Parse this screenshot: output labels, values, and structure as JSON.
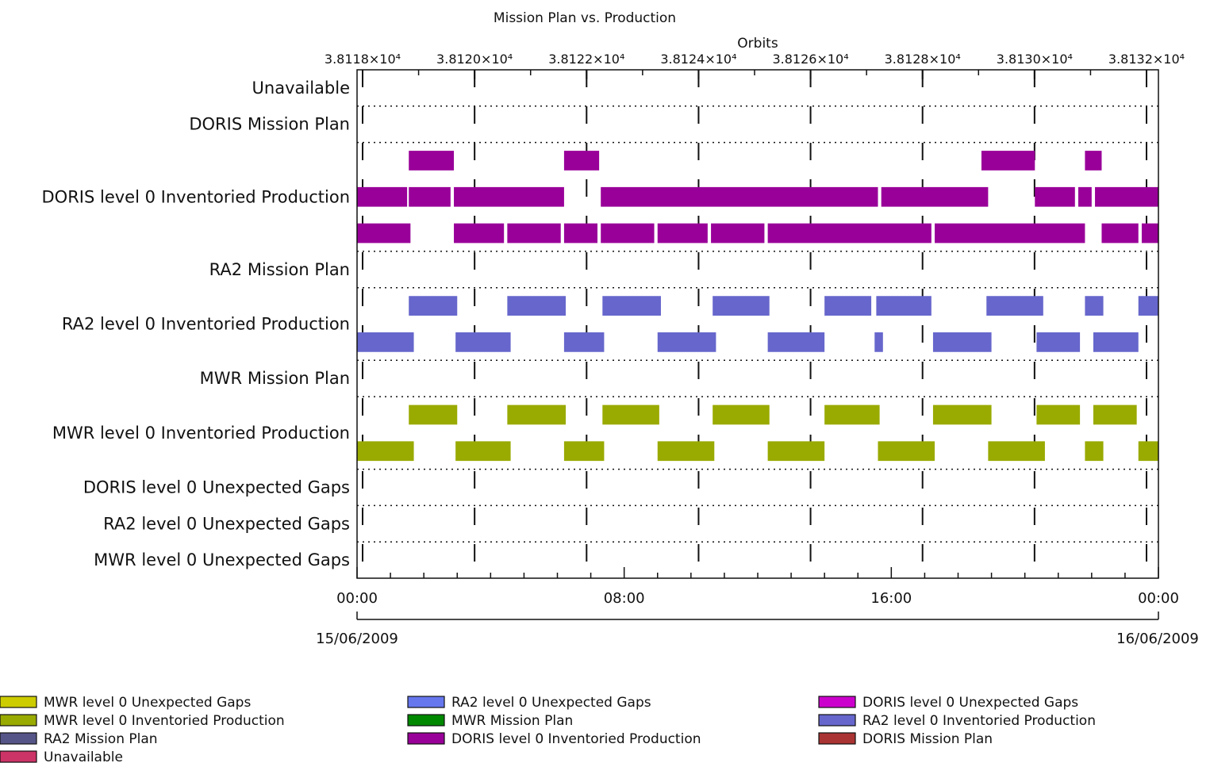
{
  "chart_data": {
    "type": "gantt",
    "title": "Mission Plan vs. Production",
    "top_axis": {
      "label": "Orbits",
      "ticks": [
        "3.8118×10⁴",
        "3.8120×10⁴",
        "3.8122×10⁴",
        "3.8124×10⁴",
        "3.8126×10⁴",
        "3.8128×10⁴",
        "3.8130×10⁴",
        "3.8132×10⁴"
      ]
    },
    "bottom_axis": {
      "range_hours": [
        0,
        24
      ],
      "ticks": [
        {
          "hour": 0,
          "label": "00:00"
        },
        {
          "hour": 8,
          "label": "08:00"
        },
        {
          "hour": 16,
          "label": "16:00"
        },
        {
          "hour": 24,
          "label": "00:00"
        }
      ],
      "start_date": "15/06/2009",
      "end_date": "16/06/2009"
    },
    "rows": [
      {
        "label": "Unavailable",
        "lanes": []
      },
      {
        "label": "DORIS Mission Plan",
        "lanes": []
      },
      {
        "label": "DORIS level 0 Inventoried Production",
        "color": "#990099",
        "lanes": [
          [
            [
              1.55,
              2.9
            ],
            [
              6.2,
              7.25
            ],
            [
              18.7,
              20.3
            ],
            [
              21.8,
              22.3
            ]
          ],
          [
            [
              0,
              1.5
            ],
            [
              1.55,
              2.8
            ],
            [
              2.9,
              6.2
            ],
            [
              7.3,
              15.6
            ],
            [
              15.7,
              18.9
            ],
            [
              20.3,
              21.5
            ],
            [
              21.6,
              22.0
            ],
            [
              22.1,
              24.0
            ]
          ],
          [
            [
              0,
              1.6
            ],
            [
              2.9,
              4.4
            ],
            [
              4.5,
              6.1
            ],
            [
              6.2,
              7.2
            ],
            [
              7.3,
              8.9
            ],
            [
              9.0,
              10.5
            ],
            [
              10.6,
              12.2
            ],
            [
              12.3,
              17.2
            ],
            [
              17.3,
              21.8
            ],
            [
              22.3,
              23.4
            ],
            [
              23.5,
              24.0
            ]
          ]
        ]
      },
      {
        "label": "RA2 Mission Plan",
        "lanes": []
      },
      {
        "label": "RA2 level 0 Inventoried Production",
        "color": "#6666cc",
        "lanes": [
          [
            [
              1.55,
              3.0
            ],
            [
              4.5,
              6.25
            ],
            [
              7.35,
              9.1
            ],
            [
              10.65,
              12.35
            ],
            [
              14.0,
              15.4
            ],
            [
              15.55,
              17.2
            ],
            [
              18.85,
              20.55
            ],
            [
              21.8,
              22.35
            ],
            [
              23.4,
              24.0
            ]
          ],
          [
            [
              0,
              1.7
            ],
            [
              2.95,
              4.6
            ],
            [
              6.2,
              7.4
            ],
            [
              9.0,
              10.75
            ],
            [
              12.3,
              14.0
            ],
            [
              15.5,
              15.75
            ],
            [
              17.25,
              19.0
            ],
            [
              20.35,
              21.65
            ],
            [
              22.05,
              23.4
            ]
          ]
        ]
      },
      {
        "label": "MWR Mission Plan",
        "lanes": []
      },
      {
        "label": "MWR level 0 Inventoried Production",
        "color": "#99aa00",
        "lanes": [
          [
            [
              1.55,
              3.0
            ],
            [
              4.5,
              6.25
            ],
            [
              7.35,
              9.05
            ],
            [
              10.65,
              12.35
            ],
            [
              14.0,
              15.65
            ],
            [
              17.25,
              19.0
            ],
            [
              20.35,
              21.65
            ],
            [
              22.05,
              23.35
            ]
          ],
          [
            [
              0,
              1.7
            ],
            [
              2.95,
              4.6
            ],
            [
              6.2,
              7.4
            ],
            [
              9.0,
              10.7
            ],
            [
              12.3,
              14.0
            ],
            [
              15.6,
              17.3
            ],
            [
              18.9,
              20.6
            ],
            [
              21.8,
              22.35
            ],
            [
              23.4,
              24.0
            ]
          ]
        ]
      },
      {
        "label": "DORIS level 0 Unexpected Gaps",
        "lanes": []
      },
      {
        "label": "RA2 level 0 Unexpected Gaps",
        "lanes": []
      },
      {
        "label": "MWR level 0 Unexpected Gaps",
        "lanes": []
      }
    ],
    "legend": [
      {
        "label": "MWR level 0 Unexpected Gaps",
        "color": "#cccc00"
      },
      {
        "label": "MWR level 0 Inventoried Production",
        "color": "#99aa00"
      },
      {
        "label": "RA2 Mission Plan",
        "color": "#555588"
      },
      {
        "label": "Unavailable",
        "color": "#cc3366"
      },
      {
        "label": "RA2 level 0 Unexpected Gaps",
        "color": "#6677ee"
      },
      {
        "label": "MWR Mission Plan",
        "color": "#008800"
      },
      {
        "label": "DORIS level 0 Inventoried Production",
        "color": "#990099"
      },
      {
        "label": "DORIS level 0 Unexpected Gaps",
        "color": "#cc00cc"
      },
      {
        "label": "RA2 level 0 Inventoried Production",
        "color": "#6666cc"
      },
      {
        "label": "DORIS Mission Plan",
        "color": "#aa3333"
      }
    ]
  }
}
